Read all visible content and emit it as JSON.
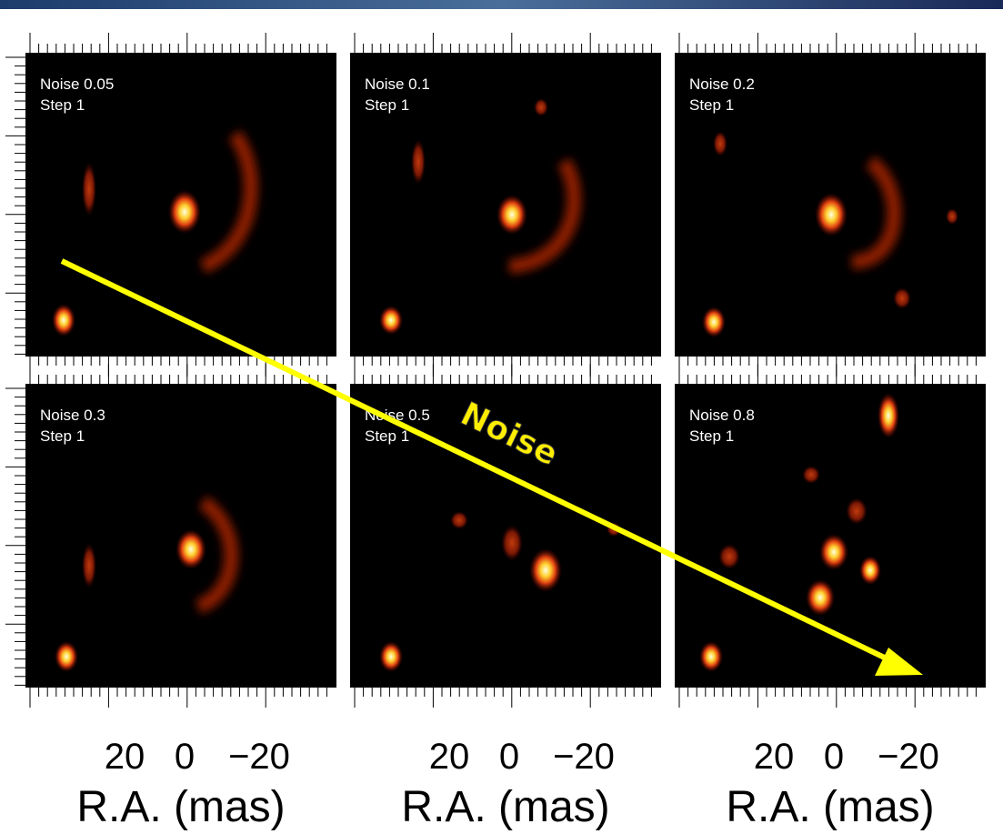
{
  "panels": [
    {
      "noise": "Noise 0.05",
      "step": "Step 1"
    },
    {
      "noise": "Noise 0.1",
      "step": "Step 1"
    },
    {
      "noise": "Noise 0.2",
      "step": "Step 1"
    },
    {
      "noise": "Noise 0.3",
      "step": "Step 1"
    },
    {
      "noise": "Noise 0.5",
      "step": "Step 1"
    },
    {
      "noise": "Noise 0.8",
      "step": "Step 1"
    }
  ],
  "axes": [
    {
      "ticks": [
        "20",
        "0",
        "−20"
      ],
      "label": "R.A. (mas)"
    },
    {
      "ticks": [
        "20",
        "0",
        "−20"
      ],
      "label": "R.A. (mas)"
    },
    {
      "ticks": [
        "20",
        "0",
        "−20"
      ],
      "label": "R.A. (mas)"
    }
  ],
  "annotation": "Noise"
}
